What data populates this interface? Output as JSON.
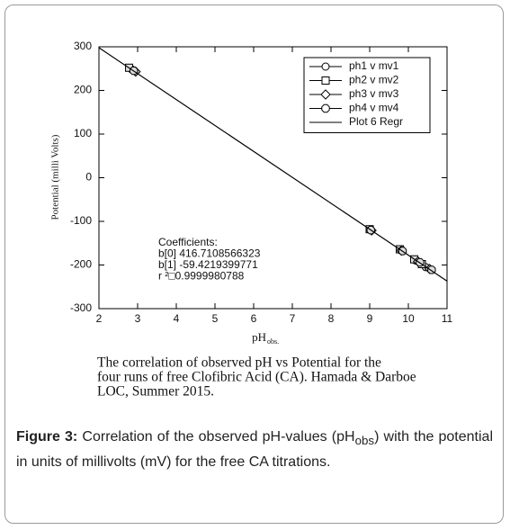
{
  "chart_data": {
    "type": "scatter",
    "y_label": "Potential (milli Volts)",
    "x_label": "pH",
    "x_label_sub": "obs.",
    "xlim": [
      2,
      11
    ],
    "xticks": [
      2,
      3,
      4,
      5,
      6,
      7,
      8,
      9,
      10,
      11
    ],
    "ylim": [
      -300,
      300
    ],
    "yticks": [
      -300,
      -200,
      -100,
      0,
      100,
      200,
      300
    ],
    "grid": false,
    "legend": "upper right",
    "series": [
      {
        "name": "ph1 v mv1",
        "marker": "circle",
        "color": "#000000",
        "x": [
          2.85,
          9.02,
          9.8,
          10.2,
          10.45
        ],
        "values": [
          248,
          -119,
          -166,
          -190,
          -205
        ]
      },
      {
        "name": "ph2 v mv2",
        "marker": "square",
        "color": "#000000",
        "x": [
          2.78,
          9.0,
          9.78,
          10.15,
          10.35
        ],
        "values": [
          252,
          -118,
          -164,
          -187,
          -198
        ]
      },
      {
        "name": "ph3 v mv3",
        "marker": "diamond",
        "color": "#000000",
        "x": [
          2.95,
          9.05,
          9.82,
          10.25,
          10.55
        ],
        "values": [
          243,
          -121,
          -167,
          -192,
          -209
        ]
      },
      {
        "name": "ph4 v mv4",
        "marker": "octagon",
        "color": "#000000",
        "x": [
          2.9,
          9.03,
          9.85,
          10.3,
          10.6
        ],
        "values": [
          245,
          -120,
          -168,
          -194,
          -211
        ]
      },
      {
        "name": "Plot 6 Regr",
        "marker": "line",
        "color": "#000000",
        "x": [
          2,
          11
        ],
        "values": [
          297.9,
          -236.9
        ]
      }
    ],
    "annotations": [
      "Coefficients:",
      "b[0] 416.7108566323",
      "b[1] -59.4219399771",
      "r ²□0.9999980788"
    ],
    "caption_lines": [
      "The correlation of observed pH vs Potential for the",
      "four runs of free Clofibric Acid (CA). Hamada & Darboe",
      "LOC, Summer 2015."
    ]
  },
  "figure_caption": {
    "label": "Figure 3:",
    "text_before": "Correlation of the observed pH-values (pH",
    "subscript": "obs",
    "text_after": ") with the potential in units of millivolts (mV) for the free CA titrations."
  }
}
